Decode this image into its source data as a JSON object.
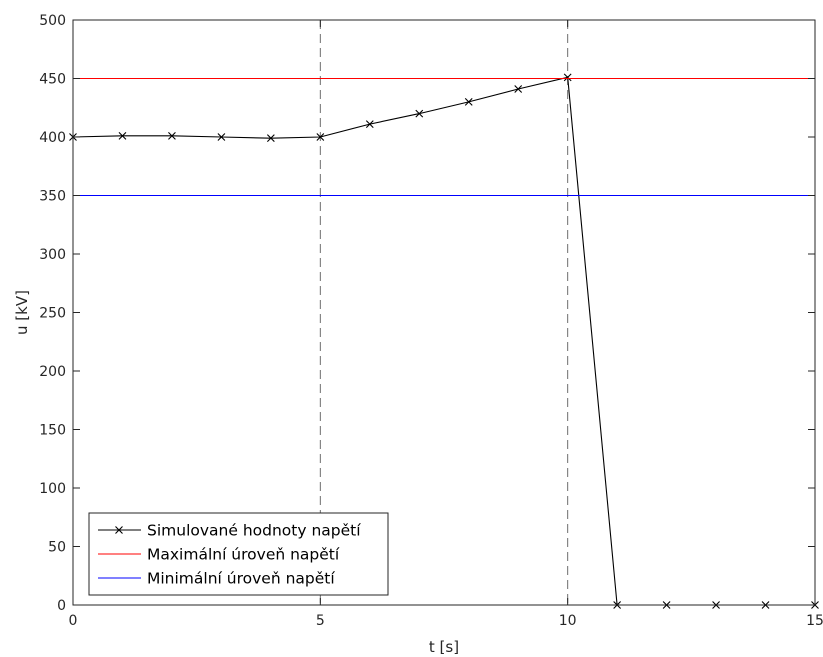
{
  "chart_data": {
    "type": "line",
    "xlabel": "t [s]",
    "ylabel": "u [kV]",
    "xlim": [
      0,
      15
    ],
    "ylim": [
      0,
      500
    ],
    "xticks": [
      0,
      5,
      10,
      15
    ],
    "yticks": [
      0,
      50,
      100,
      150,
      200,
      250,
      300,
      350,
      400,
      450,
      500
    ],
    "grid": false,
    "legend_position": "bottom-left",
    "vertical_reference_lines": [
      5,
      10
    ],
    "series": [
      {
        "name": "Simulované hodnoty napětí",
        "color": "#000000",
        "marker": "x",
        "x": [
          0,
          1,
          2,
          3,
          4,
          5,
          6,
          7,
          8,
          9,
          10,
          11,
          12,
          13,
          14,
          15
        ],
        "y": [
          400,
          401,
          401,
          400,
          399,
          400,
          411,
          420,
          430,
          441,
          451,
          0,
          0,
          0,
          0,
          0
        ]
      },
      {
        "name": "Maximální úroveň napětí",
        "color": "#ff0000",
        "marker": "none",
        "x": [
          0,
          15
        ],
        "y": [
          450,
          450
        ]
      },
      {
        "name": "Minimální úroveň napětí",
        "color": "#0000ff",
        "marker": "none",
        "x": [
          0,
          15
        ],
        "y": [
          350,
          350
        ]
      }
    ]
  }
}
